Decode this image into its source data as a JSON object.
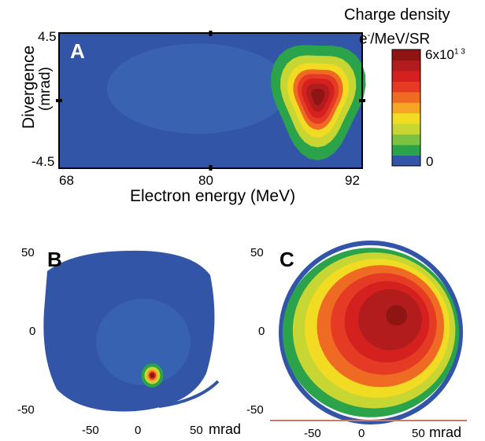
{
  "chart_data": [
    {
      "type": "heatmap",
      "panel_label": "A",
      "title": "",
      "xlabel": "Electron energy (MeV)",
      "ylabel": "Divergence\n(mrad)",
      "xlim": [
        68,
        92
      ],
      "ylim": [
        -4.5,
        4.5
      ],
      "xticks": [
        "68",
        "80",
        "92"
      ],
      "yticks": [
        "4.5",
        "-4.5"
      ],
      "background_level": 0.02,
      "peaks": [
        {
          "x": 88.5,
          "y": 0.3,
          "sx": 1.6,
          "sy": 1.7,
          "amplitude": 1.0
        },
        {
          "x": 79.0,
          "y": 0.8,
          "sx": 4.5,
          "sy": 2.0,
          "amplitude": 0.06
        }
      ]
    },
    {
      "type": "heatmap",
      "panel_label": "B",
      "xlabel": "mrad",
      "xlim": [
        -70,
        70
      ],
      "ylim": [
        -55,
        55
      ],
      "xticks": [
        "-50",
        "0",
        "50"
      ],
      "yticks": [
        "50",
        "0",
        "-50"
      ],
      "beam_spot": {
        "x": 18,
        "y": -29,
        "amplitude": 1.0
      }
    },
    {
      "type": "heatmap",
      "panel_label": "C",
      "xlabel": "mrad",
      "xlim": [
        -70,
        70
      ],
      "ylim": [
        -55,
        55
      ],
      "xticks": [
        "-50",
        "0",
        "50"
      ],
      "yticks": [
        "50",
        "0",
        "-50"
      ],
      "peak": {
        "x": 20,
        "y": 9,
        "amplitude": 0.85
      }
    }
  ],
  "colorbar": {
    "title": "Charge density",
    "unit_prefix": "e",
    "unit_sup": "-",
    "unit_rest": "/MeV/SR",
    "max_base": "6x10",
    "max_exp": "1 3",
    "min_label": "0",
    "colors": [
      "#3255a8",
      "#2aa34a",
      "#7cc242",
      "#c8d633",
      "#f2dc23",
      "#f5a623",
      "#ef6b24",
      "#e53a23",
      "#d4201f",
      "#b31c1c",
      "#8f1515"
    ]
  }
}
